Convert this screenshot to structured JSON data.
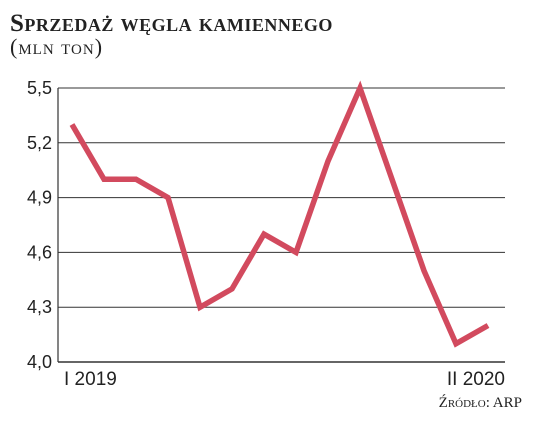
{
  "chart_data": {
    "type": "line",
    "title": "Sprzedaż węgla kamiennego",
    "subtitle": "(mln ton)",
    "source": "Źródło: ARP",
    "y_ticks": [
      "5,5",
      "5,2",
      "4,9",
      "4,6",
      "4,3",
      "4,0"
    ],
    "y_tick_values": [
      5.5,
      5.2,
      4.9,
      4.6,
      4.3,
      4.0
    ],
    "ylim": [
      4.0,
      5.5
    ],
    "x_tick_labels": [
      "I 2019",
      "II 2020"
    ],
    "grid": true,
    "series": [
      {
        "color": "#d24a5e",
        "values": [
          5.3,
          5.0,
          5.0,
          4.9,
          4.3,
          4.4,
          4.7,
          4.6,
          5.1,
          5.5,
          5.0,
          4.5,
          4.1,
          4.2
        ]
      }
    ]
  }
}
